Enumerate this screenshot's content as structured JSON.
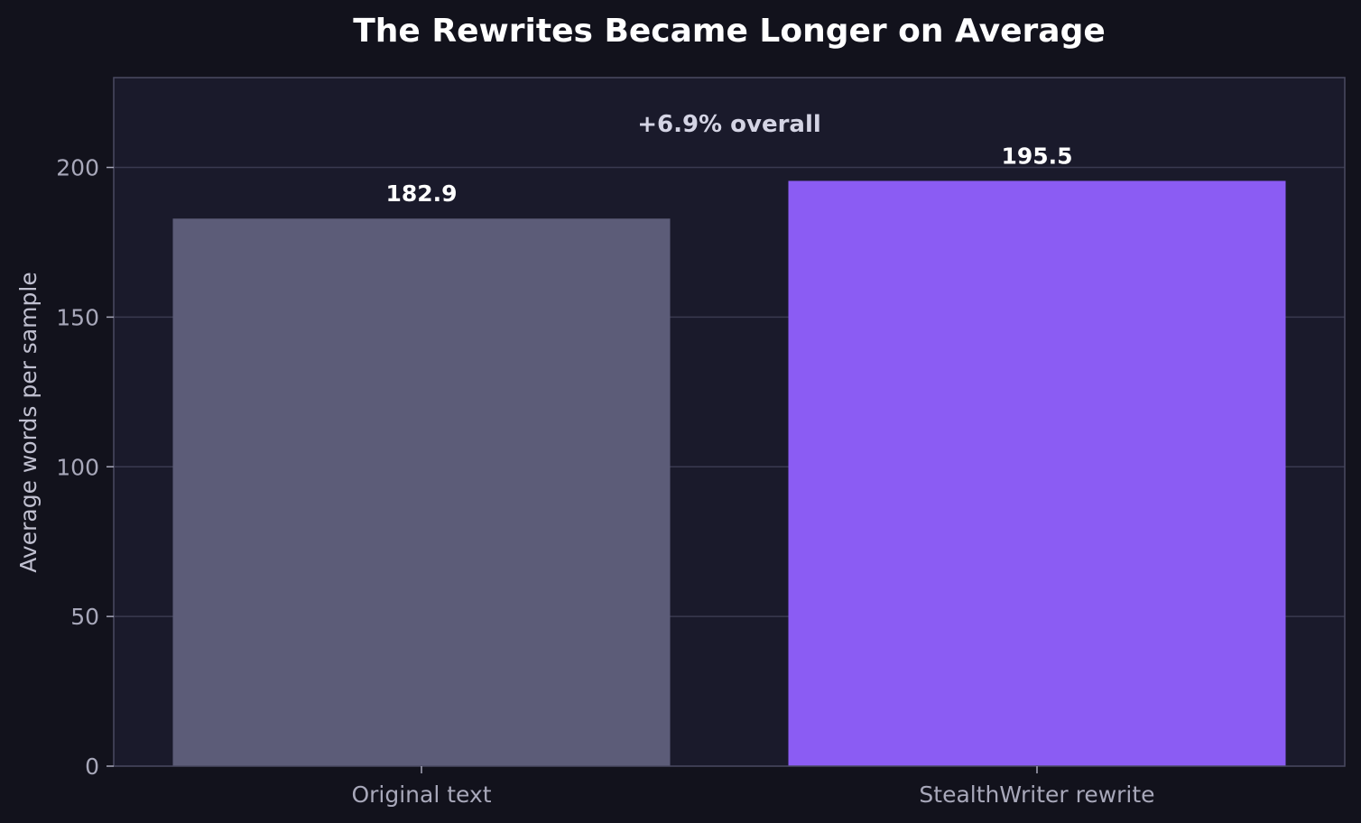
{
  "chart_data": {
    "type": "bar",
    "title": "The Rewrites Became Longer on Average",
    "xlabel": "",
    "ylabel": "Average words per sample",
    "categories": [
      "Original text",
      "StealthWriter rewrite"
    ],
    "values": [
      182.9,
      195.5
    ],
    "value_labels": [
      "182.9",
      "195.5"
    ],
    "colors": [
      "#5c5c78",
      "#8b5cf3"
    ],
    "ylim": [
      0,
      230
    ],
    "yticks": [
      0,
      50,
      100,
      150,
      200
    ],
    "grid": true,
    "annotation": "+6.9% overall"
  },
  "colors": {
    "background": "#12121c",
    "plot_background": "#1a1a2b",
    "plot_border": "#4a4a62",
    "grid": "#3a3a50"
  }
}
